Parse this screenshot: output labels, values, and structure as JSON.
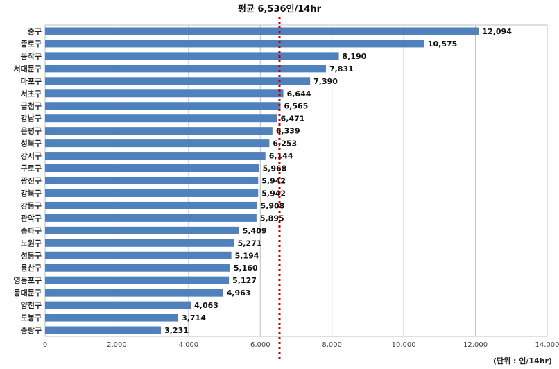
{
  "chart_data": {
    "type": "bar",
    "orientation": "horizontal",
    "title": "평균 6,536인/14hr",
    "unit_label": "(단위 : 인/14hr)",
    "categories": [
      "중구",
      "종로구",
      "동작구",
      "서대문구",
      "마포구",
      "서초구",
      "금천구",
      "강남구",
      "은평구",
      "성북구",
      "강서구",
      "구로구",
      "광진구",
      "강북구",
      "강동구",
      "관악구",
      "송파구",
      "노원구",
      "성동구",
      "용산구",
      "영등포구",
      "동대문구",
      "양천구",
      "도봉구",
      "중랑구"
    ],
    "values": [
      12094,
      10575,
      8190,
      7831,
      7390,
      6644,
      6565,
      6471,
      6339,
      6253,
      6144,
      5968,
      5942,
      5942,
      5908,
      5895,
      5409,
      5271,
      5194,
      5160,
      5127,
      4963,
      4063,
      3714,
      3231
    ],
    "value_labels": [
      "12,094",
      "10,575",
      "8,190",
      "7,831",
      "7,390",
      "6,644",
      "6,565",
      "6,471",
      "6,339",
      "6,253",
      "6,144",
      "5,968",
      "5,942",
      "5,942",
      "5,908",
      "5,895",
      "5,409",
      "5,271",
      "5,194",
      "5,160",
      "5,127",
      "4,963",
      "4,063",
      "3,714",
      "3,231"
    ],
    "x_ticks": [
      0,
      2000,
      4000,
      6000,
      8000,
      10000,
      12000,
      14000
    ],
    "x_tick_labels": [
      "0",
      "2,000",
      "4,000",
      "6,000",
      "8,000",
      "10,000",
      "12,000",
      "14,000"
    ],
    "xlim": [
      0,
      14000
    ],
    "average": 6536,
    "grid": true,
    "colors": {
      "bar": "#4F81BD",
      "average_line": "#C00000",
      "grid": "#BFBFBF"
    }
  }
}
